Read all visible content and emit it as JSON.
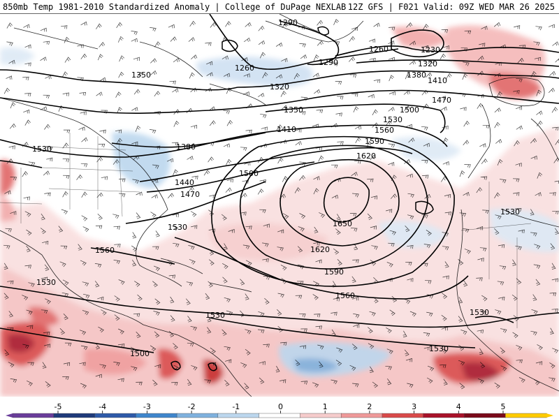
{
  "header": {
    "title_left": "850mb Temp 1981-2010 Standardized Anomaly | College of DuPage NEXLAB",
    "title_right": "12Z GFS | F021 Valid: 09Z WED MAR 26 2025"
  },
  "contour_labels": [
    "1290",
    "1260",
    "1230",
    "1260",
    "1290",
    "1320",
    "1380",
    "1410",
    "1470",
    "1350",
    "1320",
    "1350",
    "1500",
    "1530",
    "1410",
    "1560",
    "1380",
    "1590",
    "1620",
    "1530",
    "1500",
    "1440",
    "1470",
    "1530",
    "1650",
    "1560",
    "1620",
    "1590",
    "1560",
    "1530",
    "1530",
    "1530",
    "1500",
    "1530",
    "1530"
  ],
  "legend": {
    "ticks": [
      "-5",
      "-4",
      "-3",
      "-2",
      "-1",
      "0",
      "1",
      "2",
      "3",
      "4",
      "5"
    ],
    "colors": [
      "#6a3d9a",
      "#1f3a7a",
      "#2e5aa8",
      "#3f86cc",
      "#7fb1de",
      "#bcd7ee",
      "#ffffff",
      "#f6cccc",
      "#ef9999",
      "#d94a4a",
      "#a8122a",
      "#7a0a1a",
      "#ffcc00"
    ]
  }
}
